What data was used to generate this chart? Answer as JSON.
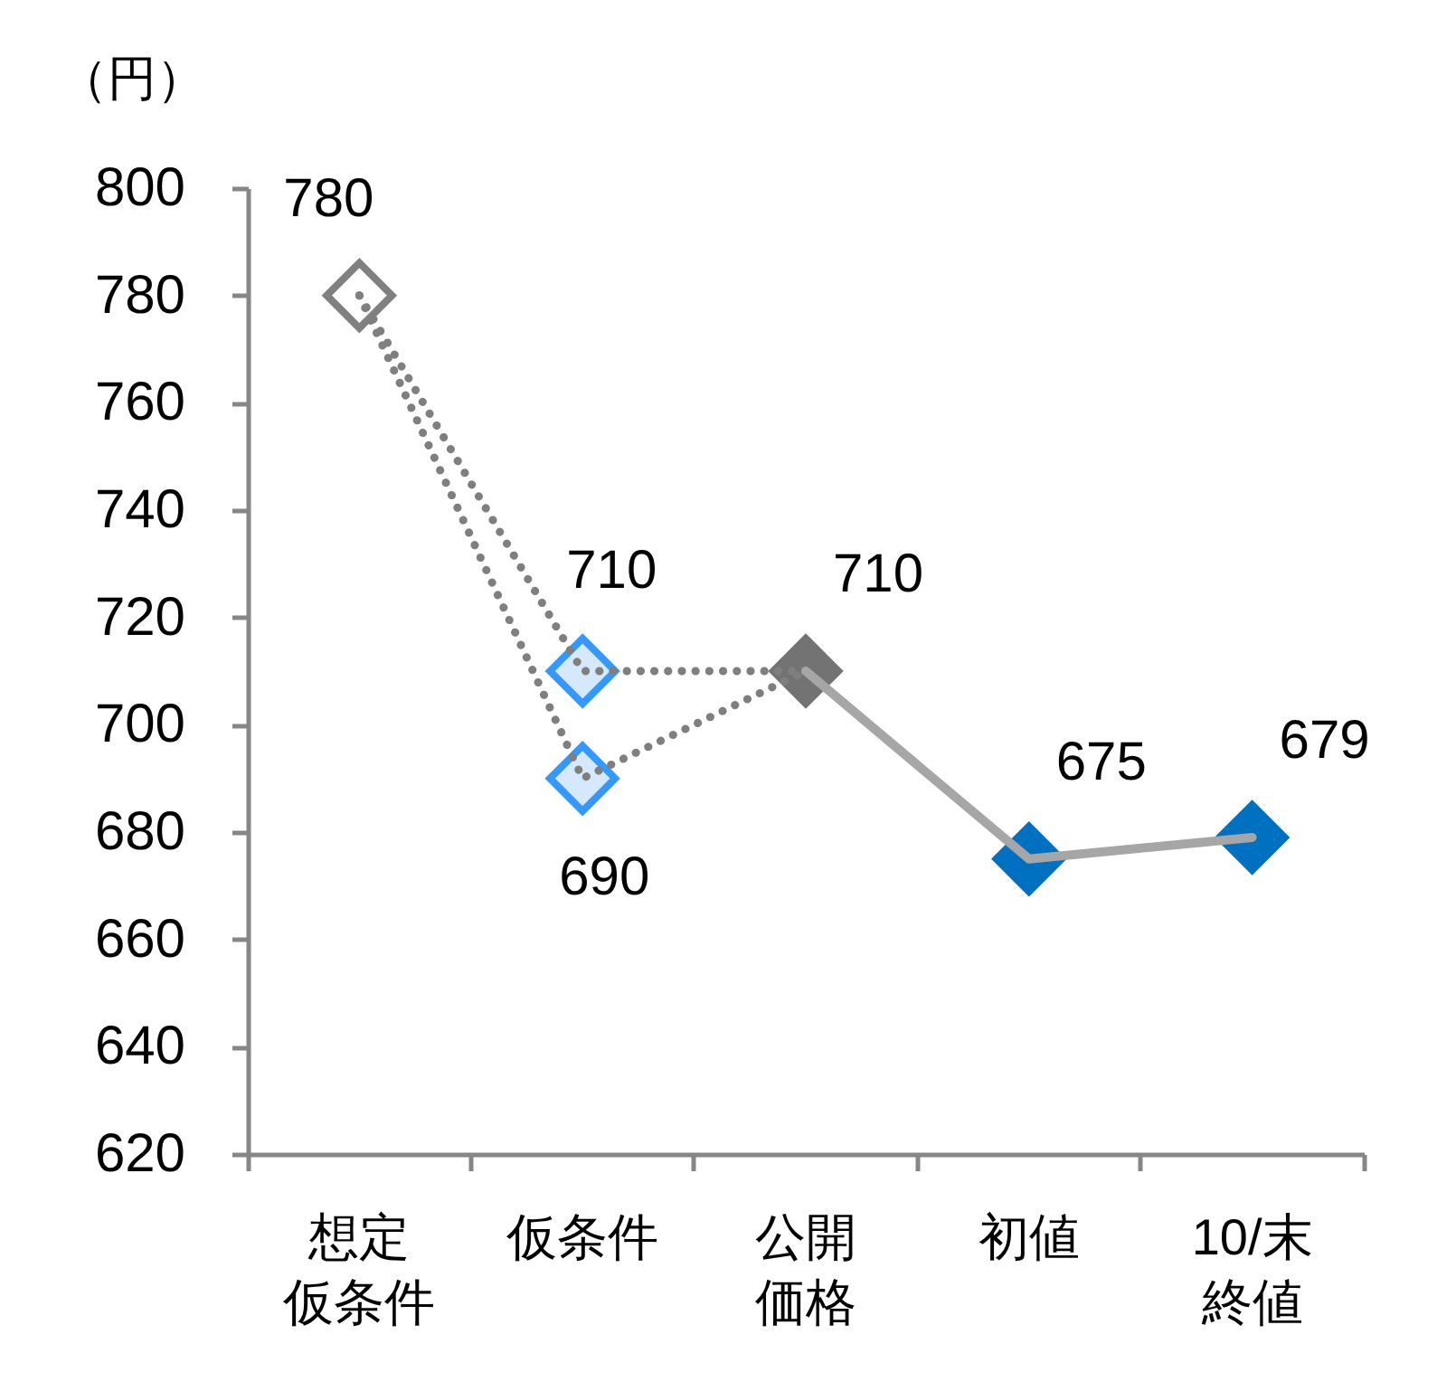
{
  "chart_data": {
    "type": "line",
    "ylabel": "（円）",
    "categories": [
      "想定仮条件",
      "仮条件",
      "公開価格",
      "初値",
      "10/末終値"
    ],
    "ylim": [
      620,
      800
    ],
    "yticks": [
      620,
      640,
      660,
      680,
      700,
      720,
      740,
      760,
      780,
      800
    ],
    "series": [
      {
        "type": "line",
        "line_style": "dotted",
        "marker": "none",
        "color": "#7f7f7f",
        "values": [
          780,
          710,
          710,
          null,
          null
        ]
      },
      {
        "type": "line",
        "line_style": "dotted",
        "marker": "none",
        "color": "#7f7f7f",
        "values": [
          780,
          690,
          710,
          null,
          null
        ]
      },
      {
        "type": "line",
        "line_style": "solid",
        "marker": "none",
        "color": "#a6a6a6",
        "values": [
          null,
          null,
          710,
          675,
          679
        ]
      },
      {
        "type": "scatter",
        "marker": "diamond",
        "color": "#808080",
        "colors": [
          "#ffffff",
          null,
          null,
          null,
          null
        ],
        "values": [
          780,
          null,
          null,
          null,
          null
        ],
        "value_labels": [
          "780",
          null,
          null,
          null,
          null
        ]
      },
      {
        "type": "scatter",
        "marker": "diamond",
        "color": "#3399ff",
        "colors": [
          null,
          "#d6e9fc",
          null,
          null,
          null
        ],
        "values": [
          null,
          710,
          null,
          null,
          null
        ],
        "value_labels": [
          null,
          "710",
          null,
          null,
          null
        ]
      },
      {
        "type": "scatter",
        "marker": "diamond",
        "color": "#3399ff",
        "colors": [
          null,
          "#d6e9fc",
          null,
          null,
          null
        ],
        "values": [
          null,
          690,
          null,
          null,
          null
        ],
        "value_labels": [
          null,
          "690",
          null,
          null,
          null
        ]
      },
      {
        "type": "scatter",
        "marker": "diamond",
        "color": "#737373",
        "values": [
          null,
          null,
          710,
          null,
          null
        ],
        "value_labels": [
          null,
          null,
          "710",
          null,
          null
        ]
      },
      {
        "type": "scatter",
        "marker": "diamond",
        "color": "#0070c0",
        "values": [
          null,
          null,
          null,
          675,
          679
        ],
        "value_labels": [
          null,
          null,
          null,
          "675",
          "679"
        ]
      }
    ]
  }
}
